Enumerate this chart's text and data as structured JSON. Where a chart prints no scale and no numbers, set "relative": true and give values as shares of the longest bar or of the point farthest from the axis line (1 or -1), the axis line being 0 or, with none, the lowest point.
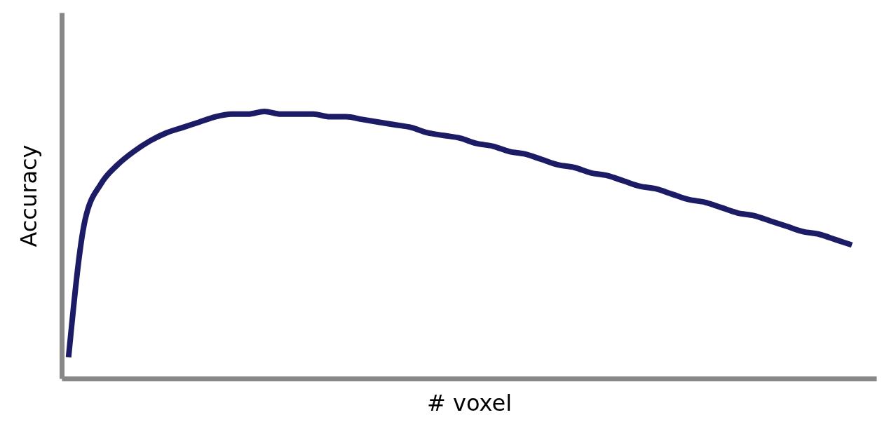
{
  "chart_data": {
    "type": "line",
    "relative": true,
    "xlabel": "# voxel",
    "ylabel": "Accuracy",
    "grid": false,
    "marker": "none",
    "line_style": "solid",
    "tick_labels": false,
    "categories": [
      null,
      null,
      null,
      null,
      null,
      null,
      null,
      null,
      null,
      null,
      null,
      null,
      null,
      null,
      null,
      null,
      null,
      null,
      null,
      null,
      null,
      null,
      null,
      null,
      null,
      null,
      null,
      null,
      null,
      null,
      null,
      null,
      null,
      null,
      null,
      null,
      null,
      null,
      null,
      null,
      null,
      null,
      null,
      null,
      null,
      null,
      null,
      null,
      null
    ],
    "series": [
      {
        "color": "#1c1b66",
        "values": [
          0.08,
          0.59,
          0.73,
          0.8,
          0.85,
          0.89,
          0.92,
          0.94,
          0.96,
          0.98,
          0.99,
          0.99,
          1,
          0.99,
          0.99,
          0.99,
          0.98,
          0.98,
          0.97,
          0.96,
          0.95,
          0.94,
          0.92,
          0.91,
          0.9,
          0.88,
          0.87,
          0.85,
          0.84,
          0.82,
          0.8,
          0.79,
          0.77,
          0.76,
          0.74,
          0.72,
          0.71,
          0.69,
          0.67,
          0.66,
          0.64,
          0.62,
          0.61,
          0.59,
          0.57,
          0.55,
          0.54,
          0.52,
          0.5
        ]
      }
    ]
  }
}
